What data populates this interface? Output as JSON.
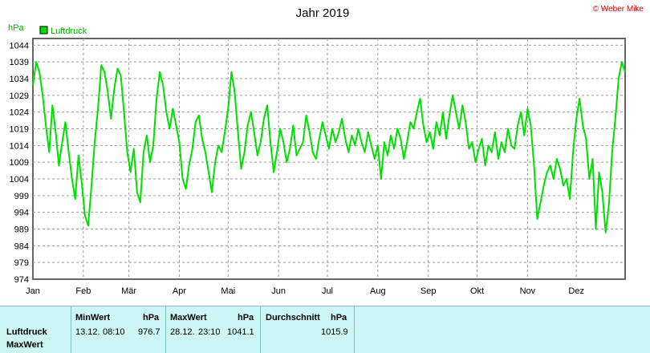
{
  "header": {
    "title": "Jahr 2019",
    "copyright": "© Weber Mike"
  },
  "chart_data": {
    "type": "line",
    "unit_label": "hPa",
    "legend": [
      "Luftdruck"
    ],
    "line_color": "#00e000",
    "ylim": [
      974,
      1046
    ],
    "yticks": [
      974,
      979,
      984,
      989,
      994,
      999,
      1004,
      1009,
      1014,
      1019,
      1024,
      1029,
      1034,
      1039,
      1044
    ],
    "months": [
      "Jan",
      "Feb",
      "Mär",
      "Apr",
      "Mai",
      "Jun",
      "Jul",
      "Aug",
      "Sep",
      "Okt",
      "Nov",
      "Dez"
    ],
    "x_unit": "day of year",
    "series": [
      {
        "name": "Luftdruck",
        "x": [
          1,
          3,
          5,
          7,
          9,
          11,
          13,
          15,
          17,
          19,
          21,
          23,
          25,
          27,
          29,
          31,
          33,
          35,
          37,
          39,
          41,
          43,
          45,
          47,
          49,
          51,
          53,
          55,
          57,
          59,
          61,
          63,
          65,
          67,
          69,
          71,
          73,
          75,
          77,
          79,
          81,
          83,
          85,
          87,
          89,
          91,
          93,
          95,
          97,
          99,
          101,
          103,
          105,
          107,
          109,
          111,
          113,
          115,
          117,
          119,
          121,
          123,
          125,
          127,
          129,
          131,
          133,
          135,
          137,
          139,
          141,
          143,
          145,
          147,
          149,
          151,
          153,
          155,
          157,
          159,
          161,
          163,
          165,
          167,
          169,
          171,
          173,
          175,
          177,
          179,
          181,
          183,
          185,
          187,
          189,
          191,
          193,
          195,
          197,
          199,
          201,
          203,
          205,
          207,
          209,
          211,
          213,
          215,
          217,
          219,
          221,
          223,
          225,
          227,
          229,
          231,
          233,
          235,
          237,
          239,
          241,
          243,
          245,
          247,
          249,
          251,
          253,
          255,
          257,
          259,
          261,
          263,
          265,
          267,
          269,
          271,
          273,
          275,
          277,
          279,
          281,
          283,
          285,
          287,
          289,
          291,
          293,
          295,
          297,
          299,
          301,
          303,
          305,
          307,
          309,
          311,
          313,
          315,
          317,
          319,
          321,
          323,
          325,
          327,
          329,
          331,
          333,
          335,
          337,
          339,
          341,
          343,
          345,
          347,
          349,
          351,
          353,
          355,
          357,
          359,
          361,
          363,
          365
        ],
        "values": [
          1032,
          1039,
          1036,
          1029,
          1020,
          1012,
          1026,
          1018,
          1008,
          1015,
          1021,
          1012,
          1004,
          998,
          1011,
          1003,
          993,
          990,
          1002,
          1015,
          1025,
          1038,
          1036,
          1030,
          1022,
          1031,
          1037,
          1035,
          1024,
          1012,
          1006,
          1013,
          1000,
          997,
          1012,
          1017,
          1009,
          1014,
          1028,
          1036,
          1032,
          1024,
          1019,
          1025,
          1020,
          1015,
          1004,
          1001,
          1008,
          1013,
          1021,
          1023,
          1016,
          1012,
          1006,
          1000,
          1009,
          1014,
          1012,
          1018,
          1025,
          1036,
          1030,
          1018,
          1007,
          1012,
          1020,
          1024,
          1018,
          1011,
          1015,
          1022,
          1026,
          1015,
          1006,
          1012,
          1019,
          1015,
          1009,
          1013,
          1020,
          1011,
          1013,
          1015,
          1023,
          1018,
          1012,
          1010,
          1016,
          1021,
          1017,
          1013,
          1019,
          1015,
          1018,
          1022,
          1016,
          1012,
          1017,
          1014,
          1019,
          1015,
          1012,
          1018,
          1014,
          1010,
          1014,
          1004,
          1015,
          1011,
          1017,
          1013,
          1019,
          1016,
          1010,
          1015,
          1021,
          1019,
          1024,
          1028,
          1020,
          1015,
          1018,
          1013,
          1021,
          1017,
          1024,
          1016,
          1023,
          1029,
          1024,
          1019,
          1026,
          1021,
          1013,
          1015,
          1009,
          1013,
          1016,
          1008,
          1014,
          1012,
          1018,
          1010,
          1015,
          1012,
          1019,
          1014,
          1013,
          1020,
          1024,
          1017,
          1025,
          1020,
          1008,
          992,
          997,
          1002,
          1006,
          1008,
          1004,
          1010,
          1007,
          1002,
          1004,
          998,
          1012,
          1022,
          1028,
          1020,
          1016,
          1004,
          1010,
          989,
          1006,
          1000,
          988,
          996,
          1012,
          1022,
          1034,
          1039,
          1036
        ]
      }
    ]
  },
  "summary": {
    "headers": {
      "min_label": "MinWert",
      "min_unit": "hPa",
      "max_label": "MaxWert",
      "max_unit": "hPa",
      "avg_label": "Durchschnitt",
      "avg_unit": "hPa"
    },
    "row_labels": [
      "Luftdruck",
      "MaxWert"
    ],
    "min_date": "13.12.",
    "min_time": "08:10",
    "min_value": "976.7",
    "max_date": "28.12.",
    "max_time": "23:10",
    "max_value": "1041.1",
    "avg_value": "1015.9"
  }
}
